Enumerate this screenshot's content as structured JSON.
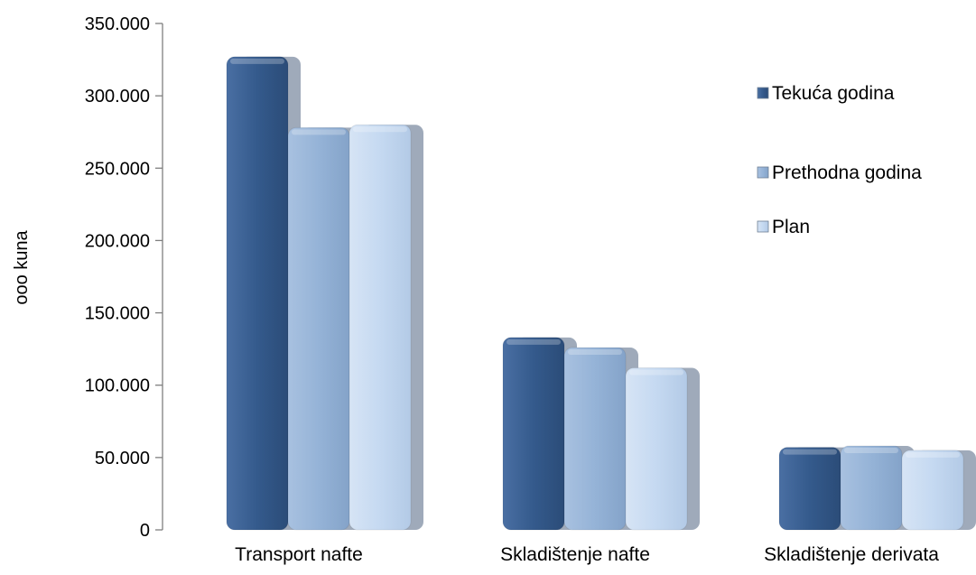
{
  "chart_data": {
    "type": "bar",
    "title": "",
    "xlabel": "",
    "ylabel": "ooo kuna",
    "categories": [
      "Transport nafte",
      "Skladištenje nafte",
      "Skladištenje derivata"
    ],
    "series": [
      {
        "name": "Tekuća godina",
        "values": [
          327000,
          133000,
          57000
        ],
        "color": "#345a8c"
      },
      {
        "name": "Prethodna godina",
        "values": [
          278000,
          126000,
          58000
        ],
        "color": "#95b3d7"
      },
      {
        "name": "Plan",
        "values": [
          280000,
          112000,
          55000
        ],
        "color": "#c5d9f1"
      }
    ],
    "ylim": [
      0,
      350000
    ],
    "yticks": [
      {
        "value": 0,
        "label": "0"
      },
      {
        "value": 50000,
        "label": "50.000"
      },
      {
        "value": 100000,
        "label": "100.000"
      },
      {
        "value": 150000,
        "label": "150.000"
      },
      {
        "value": 200000,
        "label": "200.000"
      },
      {
        "value": 250000,
        "label": "250.000"
      },
      {
        "value": 300000,
        "label": "300.000"
      },
      {
        "value": 350000,
        "label": "350.000"
      }
    ],
    "grid": false,
    "legend_position": "top-right"
  }
}
